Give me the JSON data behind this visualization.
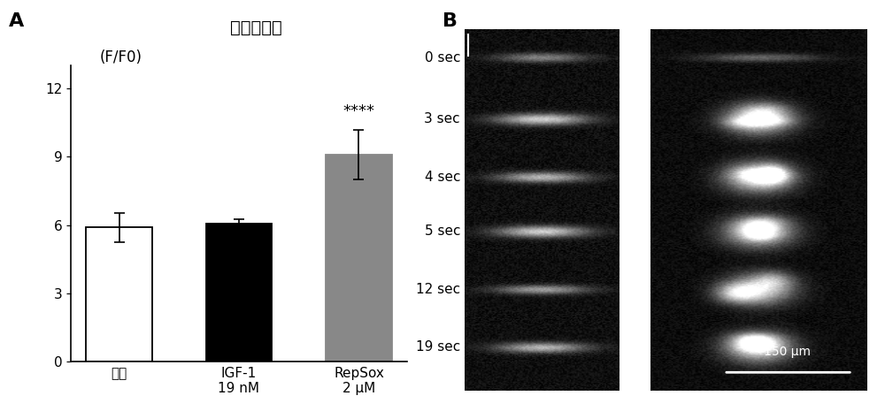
{
  "panel_A": {
    "categories": [
      "对照",
      "IGF-1\n19 nM",
      "RepSox\n2 μM"
    ],
    "values": [
      5.9,
      6.05,
      9.1
    ],
    "errors": [
      0.65,
      0.2,
      1.1
    ],
    "bar_colors": [
      "white",
      "black",
      "#888888"
    ],
    "bar_edge_colors": [
      "black",
      "black",
      "#888888"
    ],
    "ylim": [
      0,
      13
    ],
    "yticks": [
      0,
      3,
      6,
      9,
      12
    ],
    "title_line1": "钓睷态幅度",
    "title_line2": "(F/F0)",
    "significance": "****",
    "sig_bar_idx": 2,
    "background_color": "white"
  },
  "panel_B": {
    "time_labels": [
      "0 sec",
      "3 sec",
      "4 sec",
      "5 sec",
      "12 sec",
      "19 sec"
    ],
    "scale_bar_text": "150 μm",
    "background_color": "black"
  },
  "panel_label_fontsize": 16,
  "tick_fontsize": 11,
  "category_fontsize": 11
}
